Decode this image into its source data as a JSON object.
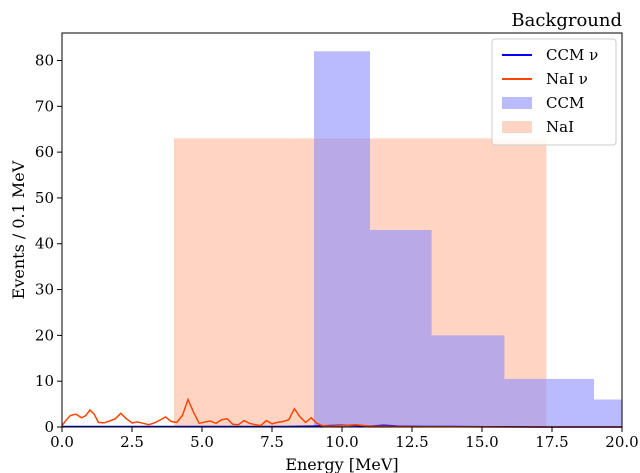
{
  "chart_data": {
    "type": "bar",
    "title": "Background",
    "xlabel": "Energy [MeV]",
    "ylabel": "Events / 0.1 MeV",
    "xlim": [
      0,
      20
    ],
    "ylim": [
      0,
      86
    ],
    "x_ticks": [
      "0.0",
      "2.5",
      "5.0",
      "7.5",
      "10.0",
      "12.5",
      "15.0",
      "17.5",
      "20.0"
    ],
    "y_ticks": [
      "0",
      "10",
      "20",
      "30",
      "40",
      "50",
      "60",
      "70",
      "80"
    ],
    "grid": false,
    "legend_position": "top-right",
    "colors": {
      "ccm_line": "#0000ff",
      "nai_line": "#ff4500",
      "ccm_hist": "#8c8cff",
      "nai_hist": "#ffb899"
    },
    "series": [
      {
        "name": "CCM ν",
        "kind": "line",
        "x": [
          0,
          1,
          2,
          3,
          4,
          5,
          6,
          7,
          8,
          9,
          9.5,
          10,
          10.5,
          11,
          11.5,
          12,
          13,
          14,
          15,
          16,
          17,
          18,
          19,
          20
        ],
        "values": [
          0.1,
          0.1,
          0.1,
          0.1,
          0.1,
          0.1,
          0.1,
          0.1,
          0.1,
          0.2,
          0.3,
          0.4,
          0.3,
          0.2,
          0.4,
          0.2,
          0.1,
          0.1,
          0.05,
          0.05,
          0,
          0,
          0,
          0
        ]
      },
      {
        "name": "NaI ν",
        "kind": "line",
        "x": [
          0,
          0.15,
          0.3,
          0.5,
          0.7,
          0.85,
          1.0,
          1.15,
          1.3,
          1.5,
          1.7,
          1.9,
          2.1,
          2.3,
          2.5,
          2.7,
          2.9,
          3.1,
          3.3,
          3.5,
          3.7,
          3.9,
          4.1,
          4.3,
          4.5,
          4.7,
          4.9,
          5.1,
          5.3,
          5.5,
          5.7,
          5.9,
          6.1,
          6.3,
          6.5,
          6.7,
          6.9,
          7.1,
          7.3,
          7.5,
          7.7,
          7.9,
          8.1,
          8.3,
          8.5,
          8.7,
          8.9,
          9.1,
          9.3,
          9.6,
          10.0,
          10.5,
          11.0,
          12.0,
          13.0,
          14.0,
          15.0,
          16.0,
          17.0,
          18.0,
          19.0,
          20.0
        ],
        "values": [
          0.3,
          1.5,
          2.5,
          2.8,
          2.0,
          2.5,
          3.7,
          2.8,
          1.0,
          0.9,
          1.3,
          1.8,
          3.0,
          1.8,
          0.9,
          1.1,
          0.8,
          0.5,
          0.9,
          1.5,
          2.2,
          1.2,
          1.0,
          2.5,
          6.0,
          3.2,
          0.8,
          1.1,
          1.3,
          0.8,
          1.6,
          1.8,
          0.6,
          0.5,
          1.4,
          0.8,
          0.5,
          0.3,
          1.4,
          0.7,
          1.0,
          1.2,
          1.6,
          4.0,
          2.2,
          1.0,
          2.0,
          0.8,
          0.3,
          0.2,
          0.3,
          0.5,
          0.2,
          0.1,
          0.05,
          0.05,
          0.02,
          0,
          0,
          0,
          0,
          0
        ]
      },
      {
        "name": "CCM",
        "kind": "hist",
        "edges": [
          9,
          11,
          13.2,
          14.5,
          15.8,
          17.3,
          19,
          20
        ],
        "values": [
          82,
          43,
          20,
          20,
          10.5,
          10.5,
          6
        ]
      },
      {
        "name": "NaI",
        "kind": "hist",
        "edges": [
          4,
          8.3,
          11,
          17.3
        ],
        "values": [
          63,
          63,
          63
        ]
      }
    ]
  }
}
